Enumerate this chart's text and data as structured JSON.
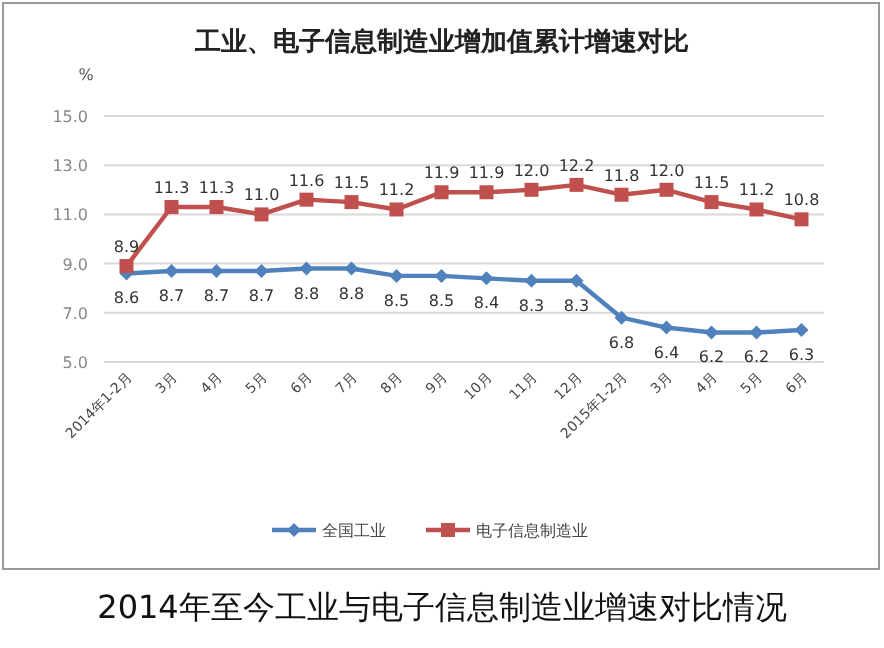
{
  "chart_data": {
    "type": "line",
    "title": "工业、电子信息制造业增加值累计增速对比",
    "ylabel": "%",
    "categories": [
      "2014年1-2月",
      "3月",
      "4月",
      "5月",
      "6月",
      "7月",
      "8月",
      "9月",
      "10月",
      "11月",
      "12月",
      "2015年1-2月",
      "3月",
      "4月",
      "5月",
      "6月"
    ],
    "series": [
      {
        "name": "全国工业",
        "color": "#4f81bd",
        "marker": "diamond",
        "values": [
          8.6,
          8.7,
          8.7,
          8.7,
          8.8,
          8.8,
          8.5,
          8.5,
          8.4,
          8.3,
          8.3,
          6.8,
          6.4,
          6.2,
          6.2,
          6.3
        ],
        "value_labels": [
          "8.6",
          "8.7",
          "8.7",
          "8.7",
          "8.8",
          "8.8",
          "8.5",
          "8.5",
          "8.4",
          "8.3",
          "8.3",
          "6.8",
          "6.4",
          "6.2",
          "6.2",
          "6.3"
        ]
      },
      {
        "name": "电子信息制造业",
        "color": "#c0504d",
        "marker": "square",
        "values": [
          8.9,
          11.3,
          11.3,
          11.0,
          11.6,
          11.5,
          11.2,
          11.9,
          11.9,
          12.0,
          12.2,
          11.8,
          12.0,
          11.5,
          11.2,
          10.8
        ],
        "value_labels": [
          "8.9",
          "11.3",
          "11.3",
          "11.0",
          "11.6",
          "11.5",
          "11.2",
          "11.9",
          "11.9",
          "12.0",
          "12.2",
          "11.8",
          "12.0",
          "11.5",
          "11.2",
          "10.8"
        ]
      }
    ],
    "ylim": [
      5,
      15
    ],
    "yticks": [
      {
        "value": 5,
        "label": "5.0"
      },
      {
        "value": 7,
        "label": "7.0"
      },
      {
        "value": 9,
        "label": "9.0"
      },
      {
        "value": 11,
        "label": "11.0"
      },
      {
        "value": 13,
        "label": "13.0"
      },
      {
        "value": 15,
        "label": "15.0"
      }
    ],
    "grid": "y",
    "legend": "bottom",
    "annotations": [
      "2014年至今工业与电子信息制造业增速对比情况"
    ]
  }
}
